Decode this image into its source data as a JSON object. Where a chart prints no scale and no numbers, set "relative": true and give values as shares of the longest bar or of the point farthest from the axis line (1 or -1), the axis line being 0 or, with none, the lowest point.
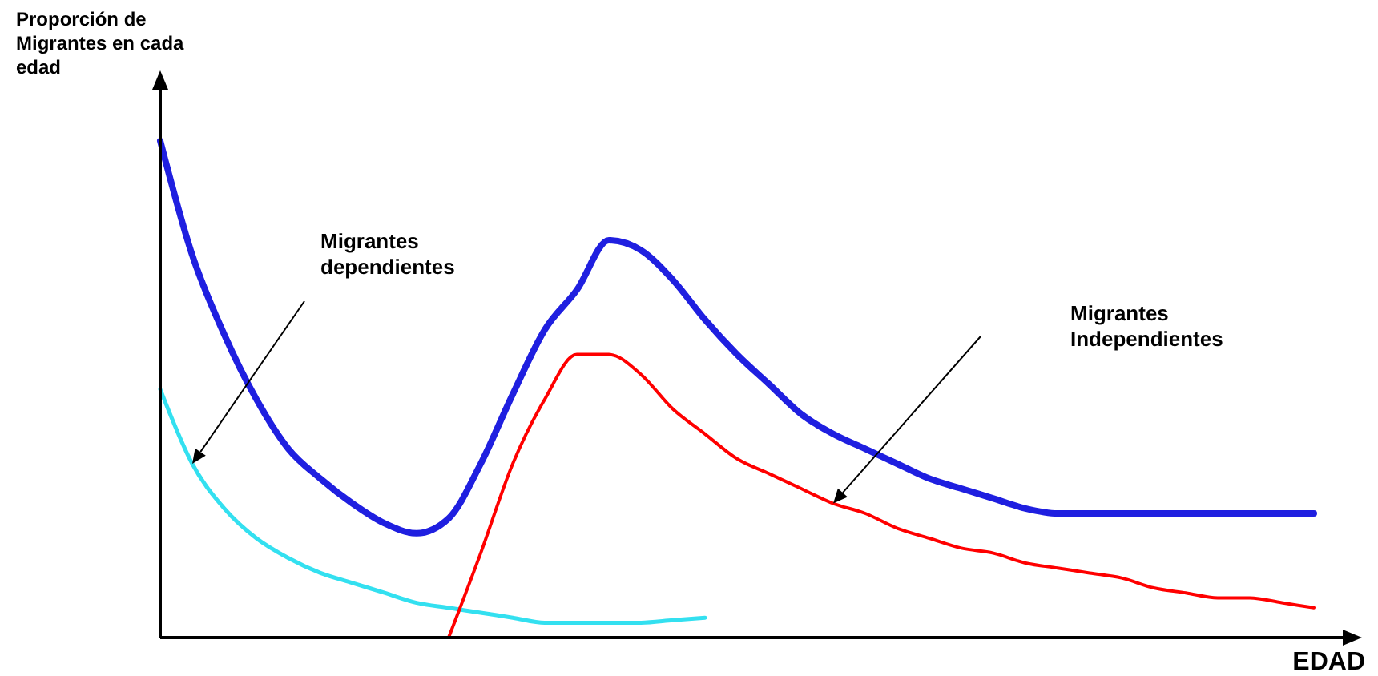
{
  "chart_data": {
    "type": "line",
    "relative": true,
    "ylabel": "Proporción de Migrantes en cada edad",
    "xlabel": "EDAD",
    "annotations": [
      "Migrantes dependientes",
      "Migrantes Independientes"
    ],
    "categories": [
      null,
      null,
      null,
      null,
      null,
      null,
      null,
      null,
      null,
      null,
      null,
      null,
      null,
      null,
      null,
      null,
      null,
      null,
      null,
      null,
      null,
      null,
      null,
      null,
      null,
      null,
      null,
      null,
      null,
      null,
      null,
      null,
      null,
      null,
      null,
      null,
      null
    ],
    "series": [
      {
        "color": "#1f1fe0",
        "values": [
          1,
          0.77,
          0.61,
          0.48,
          0.38,
          0.32,
          0.27,
          0.23,
          0.21,
          0.24,
          0.35,
          0.49,
          0.62,
          0.7,
          0.8,
          0.78,
          0.72,
          0.64,
          0.57,
          0.51,
          0.45,
          0.41,
          0.38,
          0.35,
          0.32,
          0.3,
          0.28,
          0.26,
          0.25,
          0.25,
          0.25,
          0.25,
          0.25,
          0.25,
          0.25,
          0.25,
          0.25
        ]
      },
      {
        "color": "#33e0f0",
        "values": [
          0.5,
          0.35,
          0.26,
          0.2,
          0.16,
          0.13,
          0.11,
          0.09,
          0.07,
          0.06,
          0.05,
          0.04,
          0.03,
          0.03,
          0.03,
          0.03,
          0.035,
          0.04,
          null,
          null,
          null,
          null,
          null,
          null,
          null,
          null,
          null,
          null,
          null,
          null,
          null,
          null,
          null,
          null,
          null,
          null,
          null
        ]
      },
      {
        "color": "#ff0000",
        "values": [
          null,
          null,
          null,
          null,
          null,
          null,
          null,
          null,
          null,
          0,
          0.17,
          0.35,
          0.48,
          0.57,
          0.57,
          0.53,
          0.46,
          0.41,
          0.36,
          0.33,
          0.3,
          0.27,
          0.25,
          0.22,
          0.2,
          0.18,
          0.17,
          0.15,
          0.14,
          0.13,
          0.12,
          0.1,
          0.09,
          0.08,
          0.08,
          0.07,
          0.06
        ]
      }
    ]
  }
}
